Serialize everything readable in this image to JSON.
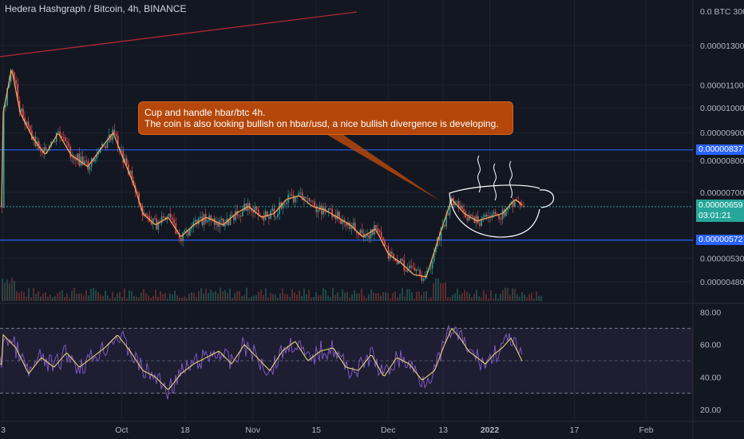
{
  "header": {
    "title": "Hedera Hashgraph / Bitcoin, 4h, BINANCE"
  },
  "colors": {
    "background": "#131722",
    "grid": "#1e222d",
    "up": "#26a69a",
    "down": "#ef5350",
    "ma": "#f7a35c",
    "rsi": "#7e57c2",
    "rsi_ma": "#e6d56e",
    "level_line": "#2962ff",
    "trend_line": "#b22833",
    "note_bg": "#b5470a",
    "current_price": "#26a69a"
  },
  "note": {
    "line1": "Cup and handle hbar/btc 4h.",
    "line2": "The coin is also looking bullish on hbar/usd, a nice bullish divergence is developing."
  },
  "price_tags": {
    "resistance": "0.00000837",
    "support": "0.00000572",
    "current": "0.00000659",
    "countdown": "03:01:21"
  },
  "chart_data": [
    {
      "type": "line",
      "panel": "price",
      "y_ticks": [
        "0.00001300",
        "0.00001100",
        "0.00001000",
        "0.00000900",
        "0.00000800",
        "0.00000700",
        "0.00000530",
        "0.00000480"
      ],
      "y_tick_values": [
        1.3e-05,
        1.1e-05,
        1e-05,
        9e-06,
        8e-06,
        7e-06,
        5.3e-06,
        4.8e-06
      ],
      "y_axis_top_label": "0.0 BTC 300",
      "scale": "log",
      "x_ticks": [
        "3",
        "Oct",
        "18",
        "Nov",
        "15",
        "Dec",
        "13",
        "2022",
        "17",
        "Feb"
      ],
      "x_tick_days": [
        0,
        28,
        43,
        59,
        74,
        91,
        104,
        115,
        135,
        152
      ],
      "horizontal_levels": [
        8.37e-06,
        5.72e-06
      ],
      "current_price": 6.59e-06,
      "series": [
        {
          "x_days": [
            0,
            2,
            4,
            7,
            10,
            13,
            16,
            20,
            24,
            26,
            28,
            31,
            33,
            36,
            39,
            42,
            45,
            48,
            52,
            55,
            58,
            61,
            64,
            67,
            70,
            73,
            76,
            79,
            82,
            85,
            88,
            91,
            94,
            97,
            100,
            103,
            106,
            109,
            112,
            115,
            118,
            121,
            123
          ],
          "values": [
            9.8e-06,
            1.18e-05,
            9.8e-06,
            8.8e-06,
            8.2e-06,
            9e-06,
            8.2e-06,
            7.8e-06,
            8.6e-06,
            9e-06,
            8.2e-06,
            7.2e-06,
            6.4e-06,
            6.1e-06,
            6.3e-06,
            5.8e-06,
            6.1e-06,
            6.3e-06,
            6.1e-06,
            6.4e-06,
            6.6e-06,
            6.3e-06,
            6.4e-06,
            6.8e-06,
            6.9e-06,
            6.6e-06,
            6.5e-06,
            6.3e-06,
            6.1e-06,
            5.8e-06,
            6e-06,
            5.4e-06,
            5.2e-06,
            4.95e-06,
            4.9e-06,
            5.8e-06,
            6.8e-06,
            6.4e-06,
            6.2e-06,
            6.3e-06,
            6.4e-06,
            6.8e-06,
            6.6e-06
          ]
        }
      ]
    },
    {
      "type": "line",
      "panel": "rsi",
      "y_ticks": [
        "80.00",
        "60.00",
        "40.00",
        "20.00"
      ],
      "y_tick_values": [
        80,
        60,
        40,
        20
      ],
      "ylim": [
        18,
        82
      ],
      "band": [
        30,
        70
      ],
      "series": [
        {
          "x_days": [
            0,
            3,
            6,
            9,
            12,
            15,
            18,
            21,
            24,
            27,
            30,
            33,
            36,
            39,
            42,
            45,
            48,
            51,
            54,
            57,
            60,
            63,
            66,
            69,
            72,
            75,
            78,
            81,
            84,
            87,
            90,
            93,
            96,
            99,
            102,
            104,
            106,
            108,
            110,
            112,
            114,
            116,
            118,
            120,
            123
          ],
          "values": [
            66,
            58,
            42,
            52,
            46,
            55,
            46,
            52,
            58,
            66,
            56,
            44,
            40,
            32,
            42,
            48,
            52,
            56,
            48,
            60,
            52,
            44,
            56,
            62,
            50,
            56,
            58,
            46,
            44,
            54,
            40,
            52,
            48,
            38,
            44,
            58,
            70,
            64,
            56,
            52,
            48,
            54,
            58,
            64,
            48
          ]
        }
      ]
    }
  ]
}
